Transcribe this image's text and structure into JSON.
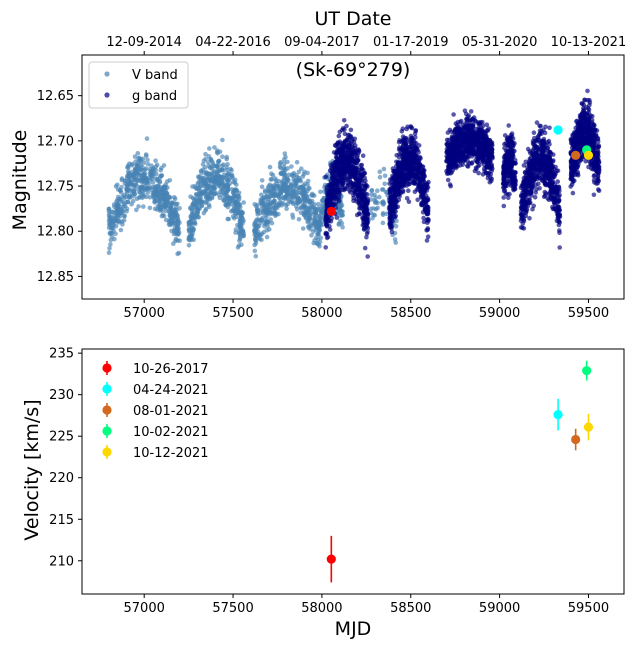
{
  "chart_data": [
    {
      "type": "scatter",
      "top_axis_label": "UT Date",
      "top_ticks": [
        {
          "label": "12-09-2014",
          "mjd": 57000
        },
        {
          "label": "04-22-2016",
          "mjd": 57500
        },
        {
          "label": "09-04-2017",
          "mjd": 58000
        },
        {
          "label": "01-17-2019",
          "mjd": 58500
        },
        {
          "label": "05-31-2020",
          "mjd": 59000
        },
        {
          "label": "10-13-2021",
          "mjd": 59500
        }
      ],
      "title": "(Sk-69°279)",
      "xlabel": "",
      "ylabel": "Magnitude",
      "xlim": [
        56650,
        59700
      ],
      "ylim": [
        12.875,
        12.605
      ],
      "y_inverted": true,
      "xticks": [
        57000,
        57500,
        58000,
        58500,
        59000,
        59500
      ],
      "yticks": [
        12.65,
        12.7,
        12.75,
        12.8,
        12.85
      ],
      "ytick_labels": [
        "12.65",
        "12.70",
        "12.75",
        "12.80",
        "12.85"
      ],
      "legend": {
        "placement": "upper-left"
      },
      "series": [
        {
          "name": "V band",
          "color": "#4682b4",
          "clusters": [
            {
              "x": [
                56800,
                57200
              ],
              "y": [
                12.8,
                12.74
              ],
              "spread": 0.028,
              "count": 520
            },
            {
              "x": [
                57250,
                57560
              ],
              "y": [
                12.8,
                12.74
              ],
              "spread": 0.028,
              "count": 470
            },
            {
              "x": [
                57620,
                57990
              ],
              "y": [
                12.8,
                12.75
              ],
              "spread": 0.028,
              "count": 500
            },
            {
              "x": [
                57990,
                58120
              ],
              "y": [
                12.79,
                12.75
              ],
              "spread": 0.025,
              "count": 150
            },
            {
              "x": [
                58230,
                58420
              ],
              "y": [
                12.8,
                12.76
              ],
              "spread": 0.025,
              "count": 70
            }
          ]
        },
        {
          "name": "g band",
          "color": "#000080",
          "clusters": [
            {
              "x": [
                58020,
                58260
              ],
              "y": [
                12.79,
                12.72
              ],
              "spread": 0.033,
              "count": 720
            },
            {
              "x": [
                58380,
                58600
              ],
              "y": [
                12.78,
                12.72
              ],
              "spread": 0.03,
              "count": 720
            },
            {
              "x": [
                58700,
                58960
              ],
              "y": [
                12.72,
                12.7
              ],
              "spread": 0.025,
              "count": 760
            },
            {
              "x": [
                59020,
                59090
              ],
              "y": [
                12.74,
                12.72
              ],
              "spread": 0.028,
              "count": 240
            },
            {
              "x": [
                59120,
                59340
              ],
              "y": [
                12.78,
                12.72
              ],
              "spread": 0.033,
              "count": 600
            },
            {
              "x": [
                59400,
                59560
              ],
              "y": [
                12.73,
                12.69
              ],
              "spread": 0.03,
              "count": 600
            }
          ]
        }
      ],
      "highlight_points": [
        {
          "x": 58053,
          "y": 12.778,
          "color": "#ff0000"
        },
        {
          "x": 59329,
          "y": 12.688,
          "color": "#00ffff"
        },
        {
          "x": 59428,
          "y": 12.716,
          "color": "#d2691e"
        },
        {
          "x": 59490,
          "y": 12.71,
          "color": "#00ff7f"
        },
        {
          "x": 59500,
          "y": 12.716,
          "color": "#ffd700"
        }
      ]
    },
    {
      "type": "scatter",
      "title": "",
      "xlabel": "MJD",
      "ylabel": "Velocity [km/s]",
      "xlim": [
        56650,
        59700
      ],
      "ylim": [
        206,
        235.5
      ],
      "xticks": [
        57000,
        57500,
        58000,
        58500,
        59000,
        59500
      ],
      "yticks": [
        210,
        215,
        220,
        225,
        230,
        235
      ],
      "legend": {
        "placement": "upper-left"
      },
      "series": [
        {
          "name": "10-26-2017",
          "color": "#ff0000",
          "x": 58053,
          "y": 210.2,
          "err": 2.8
        },
        {
          "name": "04-24-2021",
          "color": "#00ffff",
          "x": 59329,
          "y": 227.6,
          "err": 1.9
        },
        {
          "name": "08-01-2021",
          "color": "#d2691e",
          "x": 59428,
          "y": 224.6,
          "err": 1.3
        },
        {
          "name": "10-02-2021",
          "color": "#00ff7f",
          "x": 59490,
          "y": 232.9,
          "err": 1.2
        },
        {
          "name": "10-12-2021",
          "color": "#ffd700",
          "x": 59500,
          "y": 226.1,
          "err": 1.6
        }
      ]
    }
  ]
}
